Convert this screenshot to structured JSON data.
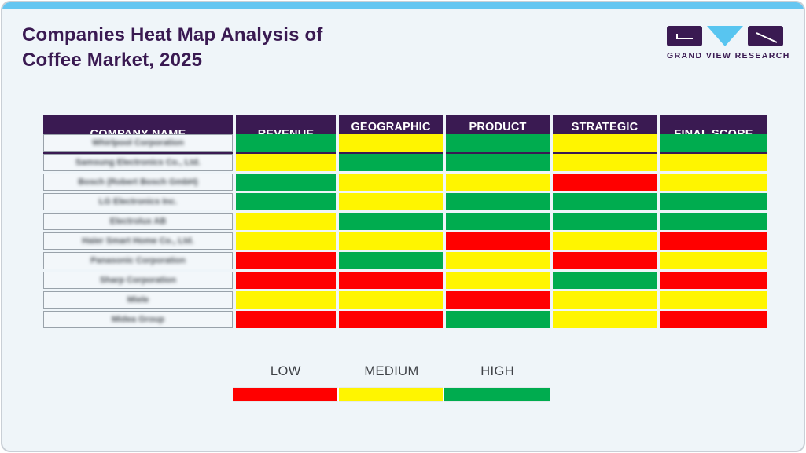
{
  "header": {
    "title_line1": "Companies Heat Map Analysis of",
    "title_line2": "Coffee Market, 2025"
  },
  "logo": {
    "text": "GRAND VIEW RESEARCH"
  },
  "colors": {
    "low": "#FF0000",
    "medium": "#FFF500",
    "high": "#00AC4F",
    "header_bg": "#3A1A52",
    "accent_bar": "#65C6F1",
    "title_text": "#3A1A52"
  },
  "table": {
    "columns": [
      "COMPANY NAME",
      "REVENUE",
      "GEOGRAPHIC PRESENCE",
      "PRODUCT POFTFOLIO",
      "STRATEGIC INTIATIVES",
      "FINAL SCORE"
    ],
    "rows": [
      {
        "company": "Whirlpool Corporation",
        "ratings": [
          "high",
          "medium",
          "high",
          "medium",
          "high"
        ]
      },
      {
        "company": "Samsung Electronics Co., Ltd.",
        "ratings": [
          "medium",
          "high",
          "high",
          "medium",
          "medium"
        ]
      },
      {
        "company": "Bosch (Robert Bosch GmbH)",
        "ratings": [
          "high",
          "medium",
          "medium",
          "low",
          "medium"
        ]
      },
      {
        "company": "LG Electronics Inc.",
        "ratings": [
          "high",
          "medium",
          "high",
          "high",
          "high"
        ]
      },
      {
        "company": "Electrolux AB",
        "ratings": [
          "medium",
          "high",
          "high",
          "high",
          "high"
        ]
      },
      {
        "company": "Haier Smart Home Co., Ltd.",
        "ratings": [
          "medium",
          "medium",
          "low",
          "medium",
          "low"
        ]
      },
      {
        "company": "Panasonic Corporation",
        "ratings": [
          "low",
          "high",
          "medium",
          "low",
          "medium"
        ]
      },
      {
        "company": "Sharp Corporation",
        "ratings": [
          "low",
          "low",
          "medium",
          "high",
          "low"
        ]
      },
      {
        "company": "Miele",
        "ratings": [
          "medium",
          "medium",
          "low",
          "medium",
          "medium"
        ]
      },
      {
        "company": "Midea Group",
        "ratings": [
          "low",
          "low",
          "high",
          "medium",
          "low"
        ]
      }
    ]
  },
  "legend": {
    "items": [
      {
        "label": "LOW",
        "color": "#FF0000"
      },
      {
        "label": "MEDIUM",
        "color": "#FFF500"
      },
      {
        "label": "HIGH",
        "color": "#00AC4F"
      }
    ]
  },
  "chart_data": {
    "type": "heatmap",
    "title": "Companies Heat Map Analysis of Coffee Market, 2025",
    "columns": [
      "Revenue",
      "Geographic Presence",
      "Product Poftfolio",
      "Strategic Intiatives",
      "Final Score"
    ],
    "rows": [
      "Whirlpool Corporation",
      "Samsung Electronics Co., Ltd.",
      "Bosch (Robert Bosch GmbH)",
      "LG Electronics Inc.",
      "Electrolux AB",
      "Haier Smart Home Co., Ltd.",
      "Panasonic Corporation",
      "Sharp Corporation",
      "Miele",
      "Midea Group"
    ],
    "values": [
      [
        "high",
        "medium",
        "high",
        "medium",
        "high"
      ],
      [
        "medium",
        "high",
        "high",
        "medium",
        "medium"
      ],
      [
        "high",
        "medium",
        "medium",
        "low",
        "medium"
      ],
      [
        "high",
        "medium",
        "high",
        "high",
        "high"
      ],
      [
        "medium",
        "high",
        "high",
        "high",
        "high"
      ],
      [
        "medium",
        "medium",
        "low",
        "medium",
        "low"
      ],
      [
        "low",
        "high",
        "medium",
        "low",
        "medium"
      ],
      [
        "low",
        "low",
        "medium",
        "high",
        "low"
      ],
      [
        "medium",
        "medium",
        "low",
        "medium",
        "medium"
      ],
      [
        "low",
        "low",
        "high",
        "medium",
        "low"
      ]
    ],
    "scale": {
      "low": "red (#FF0000)",
      "medium": "yellow (#FFF500)",
      "high": "green (#00AC4F)"
    },
    "legend_position": "bottom"
  }
}
